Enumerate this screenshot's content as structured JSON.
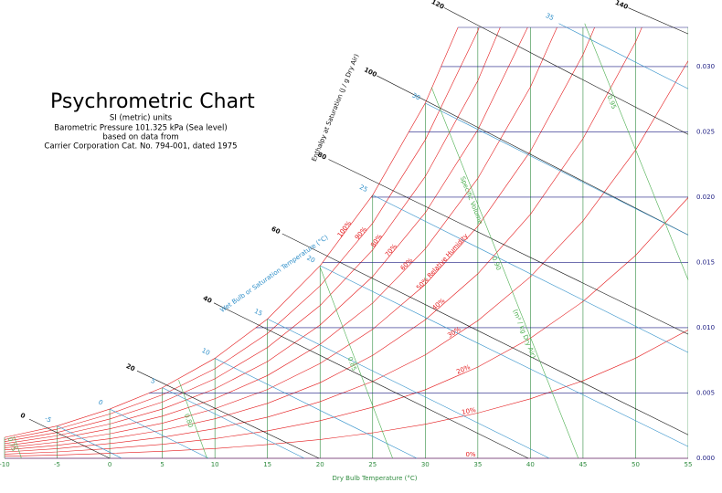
{
  "chart_data": {
    "type": "psychrometric",
    "title": "Psychrometric Chart",
    "notes": [
      "SI (metric) units",
      "Barometric Pressure 101.325 kPa (Sea level)",
      "based on data from",
      "Carrier Corporation Cat. No. 794-001, dated 1975"
    ],
    "x_label": "Dry Bulb Temperature (°C)",
    "xlim": [
      -10,
      55
    ],
    "xticks": [
      -10,
      -5,
      0,
      5,
      10,
      15,
      20,
      25,
      30,
      35,
      40,
      45,
      50,
      55
    ],
    "ylim": [
      0,
      0.033
    ],
    "yticks": [
      {
        "value": 0,
        "label": "0.000"
      },
      {
        "value": 0.005,
        "label": "0.005"
      },
      {
        "value": 0.01,
        "label": "0.010"
      },
      {
        "value": 0.015,
        "label": "0.015"
      },
      {
        "value": 0.02,
        "label": "0.020"
      },
      {
        "value": 0.025,
        "label": "0.025"
      },
      {
        "value": 0.03,
        "label": "0.030"
      }
    ],
    "x_color": "#2e8b3e",
    "y_color": "#1a1a80",
    "relative_humidity": {
      "color": "#e41a1c",
      "x": [
        -10,
        -5,
        0,
        5,
        10,
        15,
        20,
        25,
        30,
        35,
        40,
        45,
        50,
        55
      ],
      "series": [
        {
          "name": "100%",
          "values": [
            0.0016,
            0.00248,
            0.00377,
            0.00541,
            0.00766,
            0.01067,
            0.01475,
            0.02016,
            0.0272,
            0.03652,
            0.0489,
            0.0646,
            0.0865,
            0.1144
          ]
        },
        {
          "name": "90%",
          "values": [
            0.00144,
            0.00223,
            0.00339,
            0.00486,
            0.00686,
            0.00956,
            0.0132,
            0.01801,
            0.02438,
            0.03273,
            0.04366,
            0.0577,
            0.0765,
            0.1005
          ]
        },
        {
          "name": "80%",
          "values": [
            0.00128,
            0.00198,
            0.00301,
            0.00431,
            0.00609,
            0.00849,
            0.0117,
            0.01596,
            0.02158,
            0.02892,
            0.03851,
            0.0508,
            0.0671,
            0.0877
          ]
        },
        {
          "name": "70%",
          "values": [
            0.00112,
            0.00173,
            0.00263,
            0.00377,
            0.00532,
            0.00741,
            0.01021,
            0.01392,
            0.0188,
            0.02516,
            0.03344,
            0.04415,
            0.0581,
            0.0757
          ]
        },
        {
          "name": "60%",
          "values": [
            0.00096,
            0.00149,
            0.00226,
            0.00323,
            0.00456,
            0.00634,
            0.00873,
            0.01189,
            0.01604,
            0.02144,
            0.02844,
            0.03746,
            0.0492,
            0.0639
          ]
        },
        {
          "name": "50% Relative Humidity",
          "values": [
            0.0008,
            0.00124,
            0.00188,
            0.00269,
            0.0038,
            0.00527,
            0.00726,
            0.00988,
            0.01331,
            0.01777,
            0.02352,
            0.03091,
            0.04037,
            0.0525
          ]
        },
        {
          "name": "40%",
          "values": [
            0.00064,
            0.00099,
            0.0015,
            0.00215,
            0.00303,
            0.00421,
            0.00579,
            0.00788,
            0.0106,
            0.01413,
            0.01868,
            0.02448,
            0.03188,
            0.04127
          ]
        },
        {
          "name": "30%",
          "values": [
            0.00048,
            0.00074,
            0.00113,
            0.00161,
            0.00227,
            0.00315,
            0.00434,
            0.00589,
            0.00792,
            0.01054,
            0.0139,
            0.01818,
            0.02361,
            0.03044
          ]
        },
        {
          "name": "20%",
          "values": [
            0.00032,
            0.00049,
            0.00075,
            0.00107,
            0.00151,
            0.0021,
            0.00288,
            0.00391,
            0.00525,
            0.00699,
            0.0092,
            0.01201,
            0.01554,
            0.01997
          ]
        },
        {
          "name": "10%",
          "values": [
            0.00016,
            0.00025,
            0.00038,
            0.00054,
            0.00075,
            0.00105,
            0.00144,
            0.00195,
            0.00261,
            0.00347,
            0.00456,
            0.00594,
            0.00767,
            0.00983
          ]
        },
        {
          "name": "0%",
          "values": [
            0,
            0,
            0,
            0,
            0,
            0,
            0,
            0,
            0,
            0,
            0,
            0,
            0,
            0
          ]
        }
      ]
    },
    "enthalpy": {
      "title": "Enthalpy at Saturation (J / g Dry Air)",
      "color": "#111111",
      "lines": [
        {
          "name": "0",
          "x": [
            -7.65,
            0
          ],
          "values": [
            0.003,
            0
          ]
        },
        {
          "name": "20",
          "x": [
            2.6,
            19.9
          ],
          "values": [
            0.0067,
            0
          ]
        },
        {
          "name": "40",
          "x": [
            9.9,
            39.8
          ],
          "values": [
            0.0119,
            0
          ]
        },
        {
          "name": "60",
          "x": [
            16.4,
            55
          ],
          "values": [
            0.0172,
            0.0018
          ]
        },
        {
          "name": "80",
          "x": [
            20.8,
            55
          ],
          "values": [
            0.0229,
            0.0095
          ]
        },
        {
          "name": "100",
          "x": [
            25.4,
            55
          ],
          "values": [
            0.0293,
            0.0171
          ]
        },
        {
          "name": "120",
          "x": [
            31.8,
            55
          ],
          "values": [
            0.0345,
            0.0248
          ]
        },
        {
          "name": "140",
          "x": [
            49.3,
            55
          ],
          "values": [
            0.0345,
            0.0325
          ]
        }
      ]
    },
    "wet_bulb": {
      "title": "Wet Bulb or Saturation Temperature (°C)",
      "color": "#2f8fc9",
      "lines": [
        {
          "name": "-5",
          "x": [
            -5,
            1.14
          ],
          "values": [
            0.00248,
            0
          ]
        },
        {
          "name": "0",
          "x": [
            0,
            9.4
          ],
          "values": [
            0.00377,
            0
          ]
        },
        {
          "name": "5",
          "x": [
            5,
            18.5
          ],
          "values": [
            0.00541,
            0
          ]
        },
        {
          "name": "10",
          "x": [
            10,
            29.2
          ],
          "values": [
            0.00766,
            0
          ]
        },
        {
          "name": "15",
          "x": [
            15,
            41.8
          ],
          "values": [
            0.01067,
            0
          ]
        },
        {
          "name": "20",
          "x": [
            20,
            55
          ],
          "values": [
            0.01475,
            0.0009
          ]
        },
        {
          "name": "25",
          "x": [
            25,
            55
          ],
          "values": [
            0.02016,
            0.0081
          ]
        },
        {
          "name": "30",
          "x": [
            30,
            55
          ],
          "values": [
            0.0272,
            0.0171
          ]
        },
        {
          "name": "35",
          "x": [
            42.7,
            55
          ],
          "values": [
            0.0333,
            0.0283
          ]
        }
      ]
    },
    "specific_volume": {
      "title": "Specific Volume",
      "units": "(m³ / kg Dry Air)",
      "color": "#4caf50",
      "lines": [
        {
          "name": "0.75",
          "x": [
            -9.1,
            -8.4
          ],
          "values": [
            0.0017,
            0
          ]
        },
        {
          "name": "0.80",
          "x": [
            6.55,
            9.25
          ],
          "values": [
            0.006,
            0
          ]
        },
        {
          "name": "0.85",
          "x": [
            19.97,
            26.9
          ],
          "values": [
            0.0147,
            0
          ]
        },
        {
          "name": "0.90",
          "x": [
            30.6,
            44.55
          ],
          "values": [
            0.0284,
            0
          ]
        },
        {
          "name": "0.95",
          "x": [
            45.16,
            55
          ],
          "values": [
            0.0333,
            0.01365
          ]
        }
      ]
    }
  }
}
